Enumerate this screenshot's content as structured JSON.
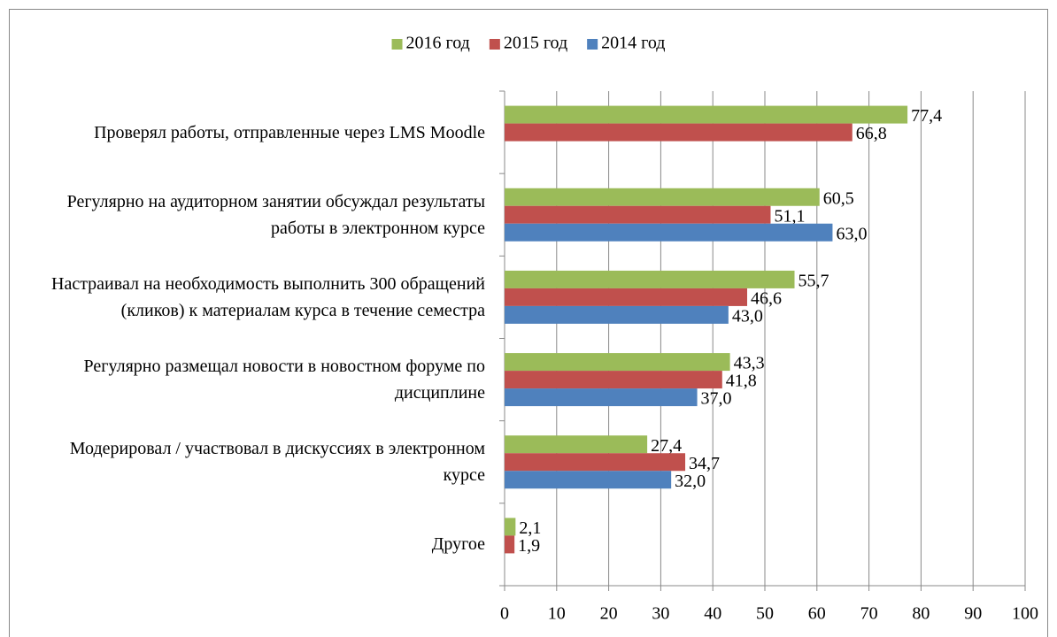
{
  "chart_data": {
    "type": "bar",
    "orientation": "horizontal",
    "categories": [
      "Проверял работы, отправленные через LMS Moodle",
      "Регулярно на аудиторном занятии обсуждал результаты работы в электронном курсе",
      "Настраивал на необходимость выполнить 300 обращений (кликов) к материалам курса в течение семестра",
      "Регулярно размещал новости в новостном форуме по дисциплине",
      "Модерировал / участвовал в дискуссиях в электронном курсе",
      "Другое"
    ],
    "series": [
      {
        "name": "2016 год",
        "color": "#9bbb59",
        "values": [
          77.4,
          60.5,
          55.7,
          43.3,
          27.4,
          2.1
        ],
        "value_labels": [
          "77,4",
          "60,5",
          "55,7",
          "43,3",
          "27,4",
          "2,1"
        ]
      },
      {
        "name": "2015 год",
        "color": "#c0504d",
        "values": [
          66.8,
          51.1,
          46.6,
          41.8,
          34.7,
          1.9
        ],
        "value_labels": [
          "66,8",
          "51,1",
          "46,6",
          "41,8",
          "34,7",
          "1,9"
        ]
      },
      {
        "name": "2014 год",
        "color": "#4f81bd",
        "values": [
          null,
          63.0,
          43.0,
          37.0,
          32.0,
          null
        ],
        "value_labels": [
          null,
          "63,0",
          "43,0",
          "37,0",
          "32,0",
          null
        ]
      }
    ],
    "xlim": [
      0,
      100
    ],
    "xticks": [
      0,
      10,
      20,
      30,
      40,
      50,
      60,
      70,
      80,
      90,
      100
    ],
    "grid": true,
    "legend": "top"
  }
}
